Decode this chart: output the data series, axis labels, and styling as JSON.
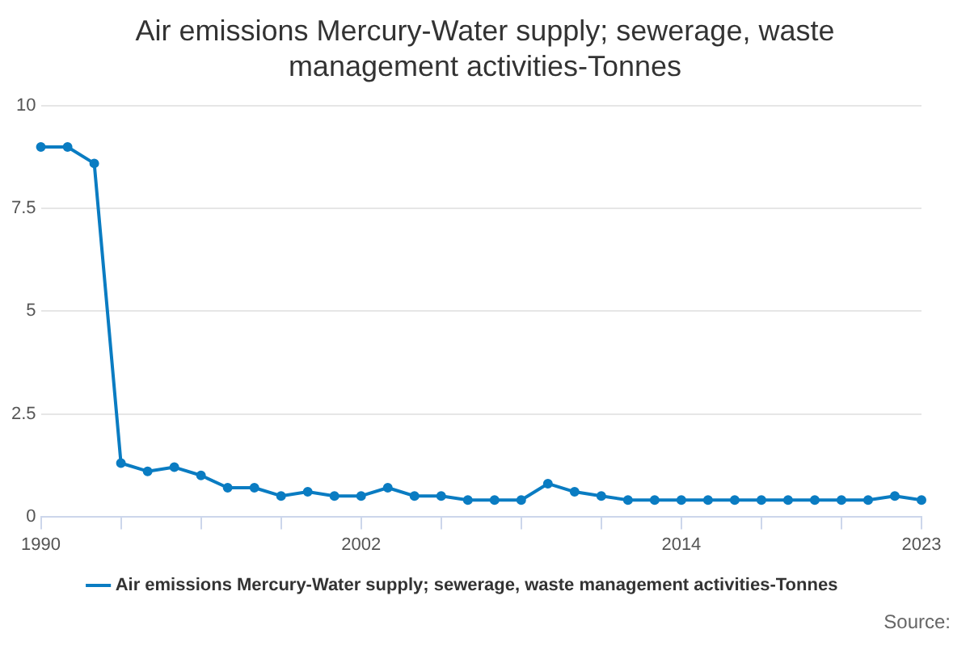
{
  "chart_data": {
    "type": "line",
    "title": "Air emissions Mercury-Water supply; sewerage, waste management activities-Tonnes",
    "x": [
      1990,
      1991,
      1992,
      1993,
      1994,
      1995,
      1996,
      1997,
      1998,
      1999,
      2000,
      2001,
      2002,
      2003,
      2004,
      2005,
      2006,
      2007,
      2008,
      2009,
      2010,
      2011,
      2012,
      2013,
      2014,
      2015,
      2016,
      2017,
      2018,
      2019,
      2020,
      2021,
      2022,
      2023
    ],
    "series": [
      {
        "name": "Air emissions Mercury-Water supply; sewerage, waste management activities-Tonnes",
        "color": "#0a7cc2",
        "values": [
          9.0,
          9.0,
          8.6,
          1.3,
          1.1,
          1.2,
          1.0,
          0.7,
          0.7,
          0.5,
          0.6,
          0.5,
          0.5,
          0.7,
          0.5,
          0.5,
          0.4,
          0.4,
          0.4,
          0.8,
          0.6,
          0.5,
          0.4,
          0.4,
          0.4,
          0.4,
          0.4,
          0.4,
          0.4,
          0.4,
          0.4,
          0.4,
          0.5,
          0.4
        ]
      }
    ],
    "xlim": [
      1990,
      2023
    ],
    "xticks": [
      1990,
      {
        "value": 1993,
        "label": null
      },
      {
        "value": 1996,
        "label": null
      },
      {
        "value": 1999,
        "label": null
      },
      2002,
      {
        "value": 2005,
        "label": null
      },
      {
        "value": 2008,
        "label": null
      },
      {
        "value": 2011,
        "label": null
      },
      2014,
      {
        "value": 2017,
        "label": null
      },
      {
        "value": 2020,
        "label": null
      },
      2023
    ],
    "ylim": [
      0,
      10
    ],
    "yticks": [
      0,
      2.5,
      5,
      7.5,
      10
    ],
    "grid": "y",
    "legend": "bottom",
    "marker": "circle",
    "line_style": "solid",
    "annotations": [
      "Source:"
    ]
  }
}
